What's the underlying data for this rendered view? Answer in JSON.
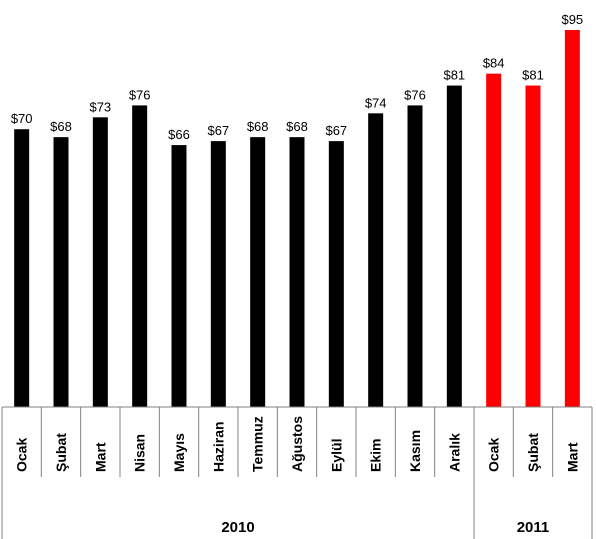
{
  "chart_data": {
    "type": "bar",
    "title": "",
    "xlabel": "",
    "ylabel": "",
    "ylim": [
      0,
      95
    ],
    "grid": false,
    "legend": "none",
    "categories": [
      "Ocak",
      "Şubat",
      "Mart",
      "Nisan",
      "Mayıs",
      "Haziran",
      "Temmuz",
      "Ağustos",
      "Eylül",
      "Ekim",
      "Kasım",
      "Aralık",
      "Ocak",
      "Şubat",
      "Mart"
    ],
    "values": [
      70,
      68,
      73,
      76,
      66,
      67,
      68,
      68,
      67,
      74,
      76,
      81,
      84,
      81,
      95
    ],
    "data_labels": [
      "$70",
      "$68",
      "$73",
      "$76",
      "$66",
      "$67",
      "$68",
      "$68",
      "$67",
      "$74",
      "$76",
      "$81",
      "$84",
      "$81",
      "$95"
    ],
    "groups": [
      {
        "label": "2010",
        "count": 12,
        "color": "#000000"
      },
      {
        "label": "2011",
        "count": 3,
        "color": "#ff0000"
      }
    ]
  }
}
